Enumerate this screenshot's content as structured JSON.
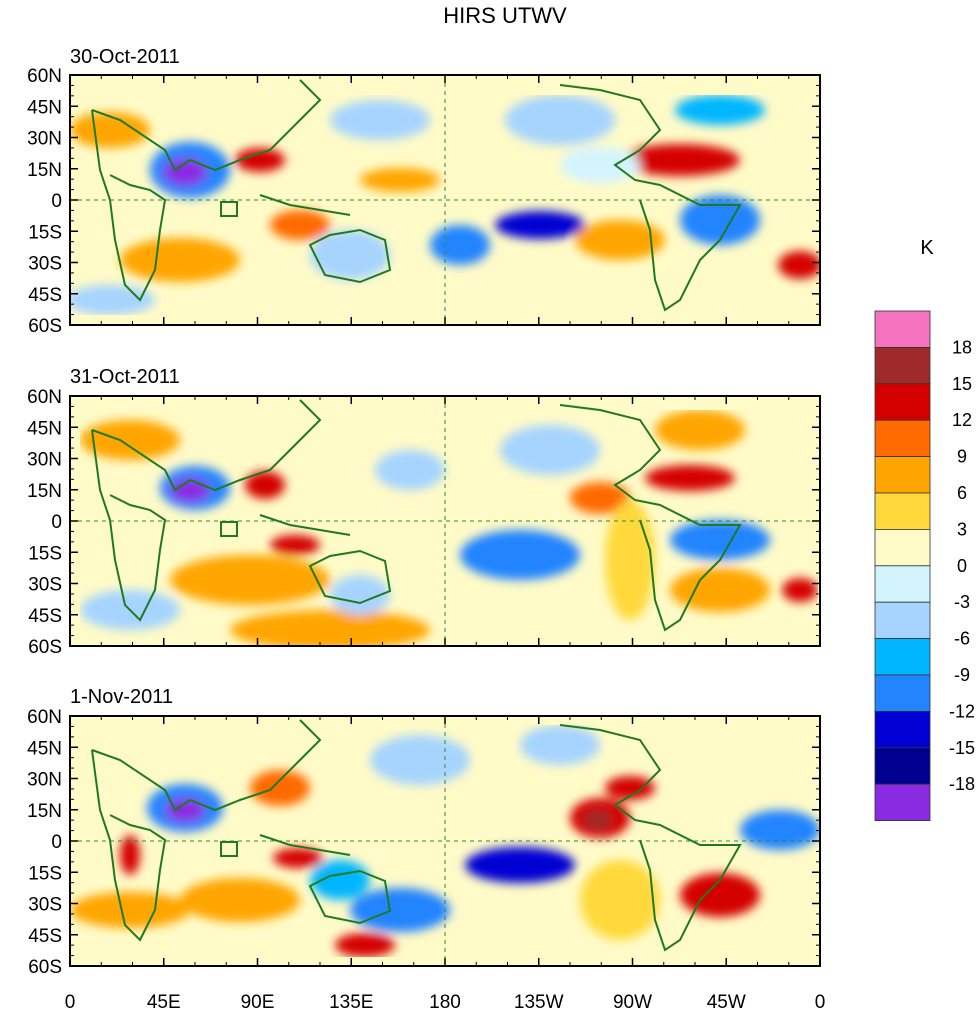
{
  "title": "HIRS UTWV",
  "colors": {
    "coast": "#1f7a1f",
    "frame": "#000000",
    "dash": "#2e8b2e"
  },
  "chart_data": {
    "type": "heatmap",
    "title": "HIRS UTWV",
    "units": "K",
    "x_ticks": [
      "0",
      "45E",
      "90E",
      "135E",
      "180",
      "135W",
      "90W",
      "45W",
      "0"
    ],
    "x_range_deg_east": [
      0,
      360
    ],
    "y_ticks": [
      "60N",
      "45N",
      "30N",
      "15N",
      "0",
      "15S",
      "30S",
      "45S",
      "60S"
    ],
    "y_range_deg": [
      60,
      -60
    ],
    "panels": [
      {
        "date": "30-Oct-2011"
      },
      {
        "date": "31-Oct-2011"
      },
      {
        "date": "1-Nov-2011"
      }
    ],
    "colorbar": {
      "labels": [
        "18",
        "15",
        "12",
        "9",
        "6",
        "3",
        "0",
        "-3",
        "-6",
        "-9",
        "-12",
        "-15",
        "-18"
      ],
      "levels": [
        18,
        15,
        12,
        9,
        6,
        3,
        0,
        -3,
        -6,
        -9,
        -12,
        -15,
        -18
      ],
      "colors": [
        "#f472c0",
        "#9e2a2a",
        "#d40000",
        "#ff6a00",
        "#ffa500",
        "#ffd93b",
        "#fffbc8",
        "#d3f4ff",
        "#a6d4ff",
        "#00b6ff",
        "#2284ff",
        "#0000d4",
        "#000090",
        "#8a2be2"
      ]
    }
  }
}
